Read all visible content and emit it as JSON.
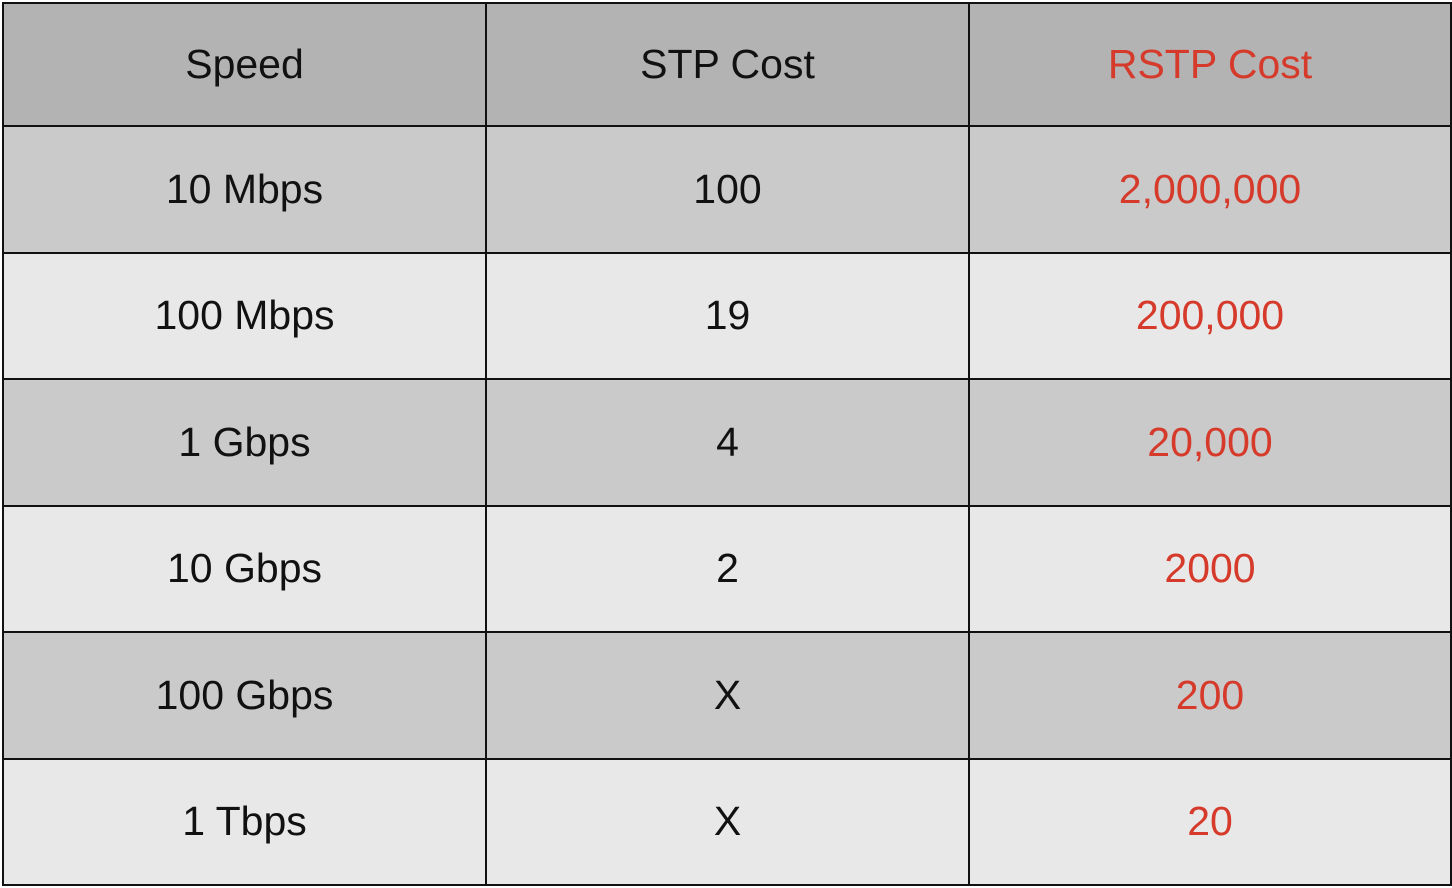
{
  "colors": {
    "header_bg": "#b3b3b3",
    "row_dark_bg": "#cacaca",
    "row_light_bg": "#e8e8e8",
    "accent": "#d53a2b",
    "text": "#111111"
  },
  "table": {
    "headers": [
      "Speed",
      "STP Cost",
      "RSTP Cost"
    ],
    "rows": [
      [
        "10 Mbps",
        "100",
        "2,000,000"
      ],
      [
        "100 Mbps",
        "19",
        "200,000"
      ],
      [
        "1 Gbps",
        "4",
        "20,000"
      ],
      [
        "10 Gbps",
        "2",
        "2000"
      ],
      [
        "100 Gbps",
        "X",
        "200"
      ],
      [
        "1 Tbps",
        "X",
        "20"
      ]
    ]
  }
}
